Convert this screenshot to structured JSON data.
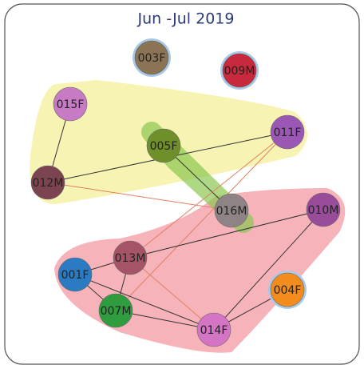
{
  "title": "Jun -Jul 2019",
  "nodes": [
    {
      "label": "003F",
      "color": "#8b7355"
    },
    {
      "label": "009M",
      "color": "#c62a3c"
    },
    {
      "label": "015F",
      "color": "#c77bc4"
    },
    {
      "label": "005F",
      "color": "#6f8f2a"
    },
    {
      "label": "011F",
      "color": "#9a58b4"
    },
    {
      "label": "012M",
      "color": "#7b4450"
    },
    {
      "label": "016M",
      "color": "#8e8486"
    },
    {
      "label": "010M",
      "color": "#994c9a"
    },
    {
      "label": "013M",
      "color": "#a45466"
    },
    {
      "label": "001F",
      "color": "#2b7bc2"
    },
    {
      "label": "004F",
      "color": "#f28c1c"
    },
    {
      "label": "007M",
      "color": "#2f9c3e"
    },
    {
      "label": "014F",
      "color": "#d474c4"
    }
  ]
}
